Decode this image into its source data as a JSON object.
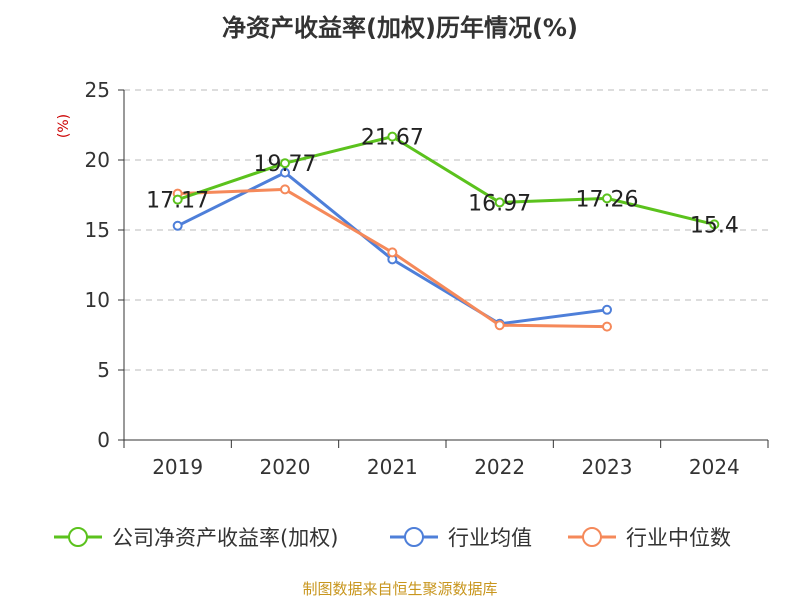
{
  "chart_data": {
    "type": "line",
    "title": "净资产收益率(加权)历年情况(%)",
    "ylabel": "(%)",
    "categories": [
      "2019",
      "2020",
      "2021",
      "2022",
      "2023",
      "2024"
    ],
    "ylim": [
      0,
      25
    ],
    "yticks": [
      0,
      5,
      10,
      15,
      20,
      25
    ],
    "grid": true,
    "legend_position": "bottom",
    "series": [
      {
        "name": "公司净资产收益率(加权)",
        "color": "#5bc21d",
        "values": [
          17.17,
          19.77,
          21.67,
          16.97,
          17.26,
          15.4
        ],
        "labels": [
          "17.17",
          "19.77",
          "21.67",
          "16.97",
          "17.26",
          "15.4"
        ]
      },
      {
        "name": "行业均值",
        "color": "#4e7fd9",
        "values": [
          15.3,
          19.1,
          12.9,
          8.3,
          9.3,
          null
        ]
      },
      {
        "name": "行业中位数",
        "color": "#f5895a",
        "values": [
          17.6,
          17.9,
          13.4,
          8.2,
          8.1,
          null
        ]
      }
    ]
  },
  "source": "制图数据来自恒生聚源数据库"
}
